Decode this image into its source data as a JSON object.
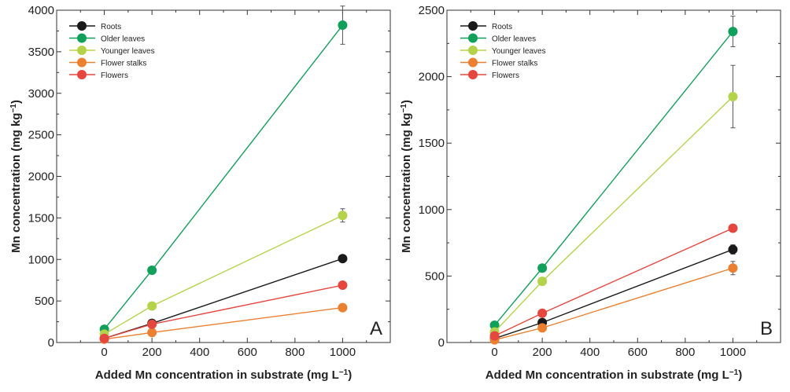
{
  "figure": {
    "title": ""
  },
  "chart_data": [
    {
      "type": "line",
      "panel_label": "A",
      "title": "",
      "xlabel": "Added Mn concentration in substrate (mg L",
      "xlabel_sup": "−1",
      "xlabel_close": ")",
      "ylabel": "Mn concentration (mg kg",
      "ylabel_sup": "−1",
      "ylabel_close": ")",
      "xlim": [
        -200,
        1200
      ],
      "ylim": [
        0,
        4000
      ],
      "xticks": [
        "0",
        "200",
        "400",
        "600",
        "800",
        "1000"
      ],
      "yticks": [
        "0",
        "500",
        "1000",
        "1500",
        "2000",
        "2500",
        "3000",
        "3500",
        "4000"
      ],
      "legend_position": "top-left",
      "grid": false,
      "x": [
        0,
        200,
        1000
      ],
      "series": [
        {
          "name": "Roots",
          "color": "#1a1a1a",
          "values": [
            50,
            230,
            1010
          ],
          "errors": [
            0,
            20,
            25
          ]
        },
        {
          "name": "Older leaves",
          "color": "#10a05a",
          "values": [
            160,
            870,
            3820
          ],
          "errors": [
            0,
            40,
            230
          ]
        },
        {
          "name": "Younger leaves",
          "color": "#b5d34a",
          "values": [
            100,
            440,
            1530
          ],
          "errors": [
            0,
            25,
            80
          ]
        },
        {
          "name": "Flower stalks",
          "color": "#ea8030",
          "values": [
            40,
            120,
            420
          ],
          "errors": [
            0,
            10,
            15
          ]
        },
        {
          "name": "Flowers",
          "color": "#e5473f",
          "values": [
            50,
            220,
            690
          ],
          "errors": [
            0,
            15,
            20
          ]
        }
      ]
    },
    {
      "type": "line",
      "panel_label": "B",
      "title": "",
      "xlabel": "Added Mn concentration in substrate (mg L",
      "xlabel_sup": "−1",
      "xlabel_close": ")",
      "ylabel": "Mn concentration (mg kg",
      "ylabel_sup": "−1",
      "ylabel_close": ")",
      "xlim": [
        -200,
        1200
      ],
      "ylim": [
        0,
        2500
      ],
      "xticks": [
        "0",
        "200",
        "400",
        "600",
        "800",
        "1000"
      ],
      "yticks": [
        "0",
        "500",
        "1000",
        "1500",
        "2000",
        "2500"
      ],
      "legend_position": "top-left",
      "grid": false,
      "x": [
        0,
        200,
        1000
      ],
      "series": [
        {
          "name": "Roots",
          "color": "#1a1a1a",
          "values": [
            30,
            150,
            700
          ],
          "errors": [
            0,
            15,
            35
          ]
        },
        {
          "name": "Older leaves",
          "color": "#10a05a",
          "values": [
            130,
            560,
            2340
          ],
          "errors": [
            0,
            20,
            115
          ]
        },
        {
          "name": "Younger leaves",
          "color": "#b5d34a",
          "values": [
            80,
            460,
            1850
          ],
          "errors": [
            0,
            20,
            235
          ]
        },
        {
          "name": "Flower stalks",
          "color": "#ea8030",
          "values": [
            20,
            110,
            560
          ],
          "errors": [
            0,
            10,
            50
          ]
        },
        {
          "name": "Flowers",
          "color": "#e5473f",
          "values": [
            50,
            220,
            860
          ],
          "errors": [
            0,
            15,
            20
          ]
        }
      ]
    }
  ]
}
